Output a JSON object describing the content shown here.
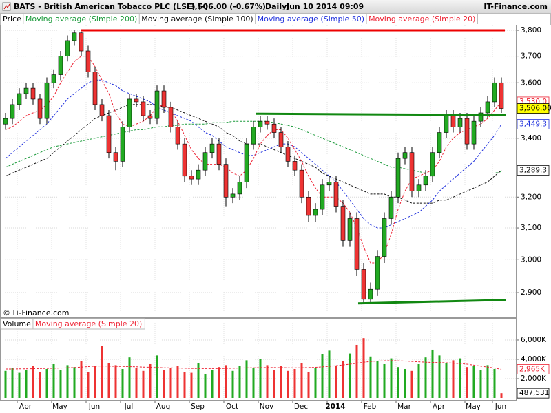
{
  "chart_data": {
    "type": "candlestick",
    "title": "BATS - British American Tobacco PLC (LSE) (-)",
    "quote": "3,506.00 (-0.67%)",
    "interval": "Daily",
    "timestamp": "Jun 10 2014 09:09",
    "source": "IT-Finance.com",
    "watermark": "© IT-Finance.com",
    "price_label": "Price",
    "log_scale": true,
    "grid": true,
    "up_color": "#22aa22",
    "down_color": "#ee3333",
    "categories": [
      null,
      null,
      "Apr",
      null,
      null,
      null,
      null,
      "May",
      null,
      null,
      null,
      null,
      "Jun",
      null,
      null,
      null,
      null,
      "Jul",
      null,
      null,
      null,
      null,
      "Aug",
      null,
      null,
      null,
      null,
      "Sep",
      null,
      null,
      null,
      null,
      "Oct",
      null,
      null,
      null,
      null,
      "Nov",
      null,
      null,
      null,
      null,
      "Dec",
      null,
      null,
      null,
      null,
      "2014",
      null,
      null,
      null,
      null,
      "Feb",
      null,
      null,
      null,
      null,
      "Mar",
      null,
      null,
      null,
      null,
      "Apr",
      null,
      null,
      null,
      null,
      "May",
      null,
      null,
      null,
      "Jun",
      null
    ],
    "open": [
      3450,
      3470,
      3520,
      3560,
      3580,
      3540,
      3470,
      3600,
      3630,
      3700,
      3760,
      3790,
      3720,
      3640,
      3520,
      3480,
      3350,
      3320,
      3440,
      3540,
      3530,
      3480,
      3470,
      3570,
      3510,
      3440,
      3380,
      3270,
      3260,
      3290,
      3350,
      3380,
      3310,
      3200,
      3210,
      3250,
      3380,
      3440,
      3460,
      3450,
      3420,
      3370,
      3320,
      3290,
      3200,
      3140,
      3160,
      3240,
      3250,
      3170,
      3060,
      3130,
      2970,
      2880,
      2910,
      3010,
      3130,
      3200,
      3330,
      3350,
      3220,
      3240,
      3270,
      3350,
      3420,
      3480,
      3440,
      3470,
      3380,
      3460,
      3490,
      3530,
      3600
    ],
    "high": [
      3490,
      3540,
      3580,
      3600,
      3600,
      3560,
      3620,
      3650,
      3720,
      3780,
      3800,
      3795,
      3740,
      3660,
      3540,
      3500,
      3370,
      3460,
      3560,
      3560,
      3550,
      3500,
      3590,
      3590,
      3530,
      3460,
      3400,
      3290,
      3310,
      3370,
      3400,
      3400,
      3330,
      3230,
      3270,
      3400,
      3460,
      3480,
      3480,
      3470,
      3440,
      3390,
      3340,
      3310,
      3220,
      3180,
      3260,
      3270,
      3270,
      3190,
      3150,
      3150,
      2990,
      2930,
      3030,
      3150,
      3220,
      3350,
      3370,
      3370,
      3260,
      3290,
      3370,
      3440,
      3500,
      3500,
      3490,
      3490,
      3480,
      3510,
      3550,
      3620,
      3620
    ],
    "low": [
      3430,
      3450,
      3500,
      3540,
      3520,
      3450,
      3450,
      3580,
      3610,
      3680,
      3740,
      3700,
      3620,
      3500,
      3460,
      3330,
      3290,
      3300,
      3420,
      3510,
      3460,
      3450,
      3450,
      3490,
      3420,
      3360,
      3250,
      3240,
      3240,
      3270,
      3330,
      3290,
      3170,
      3180,
      3190,
      3230,
      3360,
      3420,
      3430,
      3400,
      3350,
      3300,
      3270,
      3180,
      3120,
      3120,
      3140,
      3220,
      3150,
      3040,
      3040,
      2950,
      2870,
      2870,
      2890,
      2990,
      3110,
      3180,
      3310,
      3200,
      3200,
      3220,
      3250,
      3330,
      3400,
      3420,
      3420,
      3360,
      3360,
      3440,
      3470,
      3510,
      3490
    ],
    "close": [
      3470,
      3520,
      3560,
      3580,
      3540,
      3470,
      3600,
      3630,
      3700,
      3760,
      3790,
      3720,
      3640,
      3520,
      3480,
      3350,
      3320,
      3440,
      3540,
      3530,
      3480,
      3470,
      3570,
      3510,
      3440,
      3380,
      3270,
      3260,
      3290,
      3350,
      3380,
      3310,
      3200,
      3210,
      3250,
      3380,
      3440,
      3460,
      3450,
      3420,
      3370,
      3320,
      3290,
      3200,
      3140,
      3160,
      3240,
      3250,
      3170,
      3060,
      3130,
      2970,
      2880,
      2910,
      3010,
      3130,
      3200,
      3330,
      3350,
      3220,
      3240,
      3270,
      3350,
      3420,
      3480,
      3440,
      3470,
      3380,
      3460,
      3490,
      3530,
      3600,
      3506
    ],
    "series": [
      {
        "name": "Moving average (Simple 200)",
        "color": "#1a9a3a",
        "values": [
          3300,
          3310,
          3320,
          3330,
          3340,
          3350,
          3360,
          3370,
          3375,
          3380,
          3385,
          3390,
          3395,
          3400,
          3405,
          3410,
          3415,
          3420,
          3425,
          3430,
          3430,
          3435,
          3440,
          3440,
          3445,
          3445,
          3450,
          3450,
          3450,
          3450,
          3455,
          3455,
          3455,
          3460,
          3460,
          3460,
          3460,
          3460,
          3460,
          3455,
          3450,
          3445,
          3440,
          3430,
          3420,
          3410,
          3400,
          3390,
          3380,
          3370,
          3360,
          3350,
          3340,
          3330,
          3320,
          3310,
          3300,
          3300,
          3295,
          3290,
          3285,
          3280,
          3280,
          3280,
          3280,
          3280,
          3280,
          3280,
          3280,
          3280,
          3280,
          3280,
          3285
        ]
      },
      {
        "name": "Moving average (Simple 100)",
        "color": "#111111",
        "values": [
          3270,
          3280,
          3290,
          3300,
          3310,
          3320,
          3330,
          3350,
          3370,
          3390,
          3410,
          3430,
          3450,
          3470,
          3480,
          3490,
          3500,
          3510,
          3520,
          3520,
          3520,
          3520,
          3520,
          3510,
          3510,
          3500,
          3490,
          3480,
          3470,
          3460,
          3450,
          3440,
          3420,
          3410,
          3390,
          3380,
          3380,
          3380,
          3370,
          3360,
          3350,
          3340,
          3330,
          3320,
          3310,
          3300,
          3280,
          3270,
          3260,
          3250,
          3240,
          3230,
          3220,
          3210,
          3210,
          3210,
          3200,
          3200,
          3190,
          3180,
          3180,
          3180,
          3180,
          3190,
          3190,
          3200,
          3210,
          3220,
          3230,
          3240,
          3250,
          3270,
          3289.3
        ]
      },
      {
        "name": "Moving average (Simple 50)",
        "color": "#2233dd",
        "values": [
          3330,
          3350,
          3370,
          3390,
          3410,
          3430,
          3450,
          3480,
          3510,
          3540,
          3560,
          3580,
          3600,
          3610,
          3610,
          3600,
          3590,
          3570,
          3560,
          3550,
          3540,
          3530,
          3510,
          3500,
          3490,
          3480,
          3470,
          3460,
          3440,
          3420,
          3410,
          3390,
          3370,
          3360,
          3350,
          3340,
          3340,
          3350,
          3360,
          3370,
          3380,
          3380,
          3370,
          3350,
          3330,
          3310,
          3290,
          3270,
          3250,
          3220,
          3190,
          3160,
          3130,
          3110,
          3100,
          3100,
          3110,
          3120,
          3130,
          3140,
          3150,
          3170,
          3190,
          3220,
          3240,
          3260,
          3280,
          3300,
          3320,
          3350,
          3380,
          3410,
          3449.3
        ]
      },
      {
        "name": "Moving average (Simple 20)",
        "color": "#ee2233",
        "values": [
          3430,
          3440,
          3460,
          3480,
          3490,
          3500,
          3520,
          3550,
          3600,
          3640,
          3680,
          3700,
          3700,
          3660,
          3610,
          3560,
          3490,
          3450,
          3440,
          3450,
          3460,
          3480,
          3510,
          3520,
          3500,
          3460,
          3410,
          3360,
          3330,
          3310,
          3310,
          3310,
          3300,
          3280,
          3270,
          3290,
          3330,
          3380,
          3410,
          3430,
          3430,
          3400,
          3360,
          3320,
          3270,
          3230,
          3200,
          3200,
          3200,
          3180,
          3150,
          3100,
          3040,
          2990,
          2990,
          3020,
          3080,
          3160,
          3220,
          3260,
          3270,
          3280,
          3290,
          3320,
          3370,
          3400,
          3420,
          3430,
          3440,
          3450,
          3470,
          3500,
          3530
        ]
      }
    ],
    "ylim": [
      2825,
      3819
    ],
    "yticks": [
      {
        "value": 2900,
        "label": "2,900"
      },
      {
        "value": 3000,
        "label": "3,000"
      },
      {
        "value": 3100,
        "label": "3,100"
      },
      {
        "value": 3200,
        "label": "3,200"
      },
      {
        "value": 3400,
        "label": "3,400"
      },
      {
        "value": 3600,
        "label": "3,600"
      },
      {
        "value": 3700,
        "label": "3,700"
      },
      {
        "value": 3800,
        "label": "3,800"
      }
    ],
    "axis_labels": [
      {
        "value": 3530,
        "label": "3,530.0",
        "color": "#ee2233"
      },
      {
        "value": 3506,
        "label": "3,506.00",
        "color": "#000000",
        "highlight": "#ffff00"
      },
      {
        "value": 3449.3,
        "label": "3,449.3",
        "color": "#2233dd"
      },
      {
        "value": 3289.3,
        "label": "3,289.3",
        "color": "#111111"
      }
    ],
    "trendlines": [
      {
        "color": "#ee0000",
        "x": [
          11,
          72.5
        ],
        "y": [
          3800,
          3800
        ]
      },
      {
        "color": "#118811",
        "x": [
          36.4,
          72.7
        ],
        "y": [
          3487,
          3482
        ]
      },
      {
        "color": "#118811",
        "x": [
          51.2,
          72.7
        ],
        "y": [
          2868,
          2878
        ]
      }
    ],
    "volume": {
      "name": "Volume",
      "ma_name": "Moving average (Simple 20)",
      "ma_color": "#ee2233",
      "values": [
        2800,
        3100,
        2600,
        2900,
        3300,
        2700,
        3000,
        3500,
        2900,
        3400,
        3200,
        3800,
        2700,
        3300,
        5400,
        3600,
        3400,
        3000,
        4200,
        3100,
        2800,
        3500,
        4400,
        2900,
        3100,
        3300,
        2700,
        2600,
        3600,
        2500,
        2900,
        3200,
        3400,
        2800,
        3300,
        3900,
        3100,
        4000,
        3400,
        2900,
        3300,
        2800,
        3000,
        3600,
        2700,
        3100,
        4500,
        4900,
        3300,
        3800,
        4600,
        5500,
        6200,
        4300,
        3800,
        3500,
        4100,
        3200,
        3000,
        2800,
        3500,
        4200,
        5000,
        4400,
        3600,
        3900,
        4100,
        3200,
        3300,
        2900,
        3400,
        3000,
        487.531
      ],
      "ma_values": [
        3000,
        3000,
        3010,
        3020,
        3030,
        3050,
        3060,
        3080,
        3100,
        3120,
        3150,
        3200,
        3250,
        3300,
        3320,
        3300,
        3280,
        3260,
        3250,
        3230,
        3200,
        3180,
        3150,
        3130,
        3120,
        3100,
        3080,
        3060,
        3050,
        3040,
        3040,
        3050,
        3060,
        3080,
        3100,
        3120,
        3130,
        3140,
        3150,
        3150,
        3140,
        3130,
        3120,
        3130,
        3150,
        3180,
        3220,
        3280,
        3350,
        3420,
        3500,
        3600,
        3700,
        3780,
        3820,
        3850,
        3860,
        3850,
        3820,
        3780,
        3740,
        3700,
        3680,
        3660,
        3640,
        3600,
        3560,
        3500,
        3400,
        3300,
        3200,
        3100,
        2965
      ],
      "ylim": [
        0,
        8140
      ],
      "yticks": [
        {
          "value": 2000,
          "label": "2,000K"
        },
        {
          "value": 4000,
          "label": "4,000K"
        },
        {
          "value": 6000,
          "label": "6,000K"
        }
      ],
      "axis_labels": [
        {
          "value": 2965,
          "label": "2,965K",
          "color": "#ee2233"
        },
        {
          "value": 487.531,
          "label": "487,531",
          "color": "#000000"
        }
      ]
    }
  }
}
